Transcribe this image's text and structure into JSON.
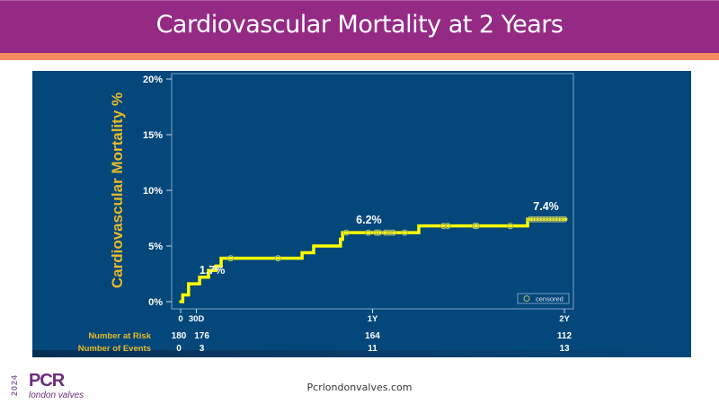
{
  "slide": {
    "title": "Cardiovascular Mortality at 2 Years",
    "footer_url": "Pcrlondonvalves.com",
    "logo": {
      "year": "2024",
      "brand": "PCR",
      "subtitle": "london valves"
    },
    "colors": {
      "title_bg": "#952a85",
      "accent": "#f58a62",
      "panel_bg": "#04477a",
      "curve": "#ffff00",
      "label_yellow": "#e8b92a"
    }
  },
  "chart_data": {
    "type": "line",
    "subtype": "kaplan-meier-step",
    "title": "",
    "ylabel": "Cardiovascular Mortality %",
    "xlabel": "",
    "ylim": [
      0,
      20
    ],
    "xlim_days": [
      0,
      730
    ],
    "y_ticks": [
      {
        "value": 0,
        "label": "0%"
      },
      {
        "value": 5,
        "label": "5%"
      },
      {
        "value": 10,
        "label": "10%"
      },
      {
        "value": 15,
        "label": "15%"
      },
      {
        "value": 20,
        "label": "20%"
      }
    ],
    "x_ticks": [
      {
        "value": 0,
        "label": "0"
      },
      {
        "value": 30,
        "label": "30D"
      },
      {
        "value": 365,
        "label": "1Y"
      },
      {
        "value": 730,
        "label": "2Y"
      }
    ],
    "series": [
      {
        "name": "Cardiovascular mortality",
        "steps": [
          {
            "day": 0,
            "pct": 0.0
          },
          {
            "day": 4,
            "pct": 0.6
          },
          {
            "day": 15,
            "pct": 1.6
          },
          {
            "day": 36,
            "pct": 2.2
          },
          {
            "day": 53,
            "pct": 2.8
          },
          {
            "day": 67,
            "pct": 3.2
          },
          {
            "day": 77,
            "pct": 3.9
          },
          {
            "day": 231,
            "pct": 4.4
          },
          {
            "day": 253,
            "pct": 5.0
          },
          {
            "day": 304,
            "pct": 5.6
          },
          {
            "day": 308,
            "pct": 6.2
          },
          {
            "day": 453,
            "pct": 6.8
          },
          {
            "day": 660,
            "pct": 7.4
          }
        ],
        "end_day": 732,
        "censored_days": [
          95,
          185,
          315,
          357,
          372,
          377,
          390,
          397,
          404,
          426,
          500,
          508,
          560,
          563,
          627,
          665,
          670,
          676,
          682,
          688,
          694,
          700,
          706,
          712,
          718,
          724,
          730
        ]
      }
    ],
    "annotations": [
      {
        "day": 60,
        "pct": 1.7,
        "label": "1.7%"
      },
      {
        "day": 358,
        "pct": 6.2,
        "label": "6.2%"
      },
      {
        "day": 695,
        "pct": 7.4,
        "label": "7.4%"
      }
    ],
    "legend": {
      "placement": "bottom-right",
      "entries": [
        "censored"
      ]
    },
    "risk_table": {
      "rows": [
        {
          "label": "Number at Risk",
          "values": [
            {
              "day": 0,
              "v": "180"
            },
            {
              "day": 30,
              "v": "176"
            },
            {
              "day": 365,
              "v": "164"
            },
            {
              "day": 730,
              "v": "112"
            }
          ]
        },
        {
          "label": "Number of Events",
          "values": [
            {
              "day": 0,
              "v": "0"
            },
            {
              "day": 30,
              "v": "3"
            },
            {
              "day": 365,
              "v": "11"
            },
            {
              "day": 730,
              "v": "13"
            }
          ]
        }
      ]
    },
    "grid": false
  }
}
